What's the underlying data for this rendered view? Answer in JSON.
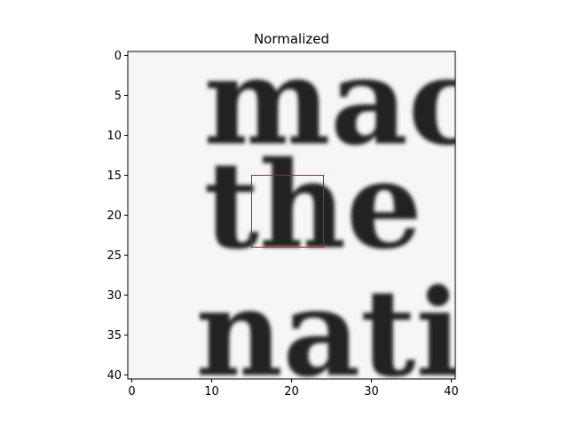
{
  "chart_data": {
    "type": "heatmap",
    "title": "Normalized",
    "colormap": "gray_r",
    "grid": false,
    "xlim": [
      -0.5,
      40.5
    ],
    "ylim": [
      40.5,
      -0.5
    ],
    "x_ticks": [
      0,
      10,
      20,
      30,
      40
    ],
    "y_ticks": [
      0,
      5,
      10,
      15,
      20,
      25,
      30,
      35,
      40
    ],
    "x_tick_labels": [
      "0",
      "10",
      "20",
      "30",
      "40"
    ],
    "y_tick_labels": [
      "0",
      "5",
      "10",
      "15",
      "20",
      "25",
      "30",
      "35",
      "40"
    ],
    "image_text_lines": [
      {
        "text": "mac",
        "baseline_y": 11,
        "start_x": 9
      },
      {
        "text": "the",
        "baseline_y": 24,
        "start_x": 9
      },
      {
        "text": "nati",
        "baseline_y": 40,
        "start_x": 8
      }
    ],
    "highlight_box": {
      "x0": 15,
      "y0": 15,
      "x1": 24,
      "y1": 24,
      "color": "#ff0000"
    }
  }
}
